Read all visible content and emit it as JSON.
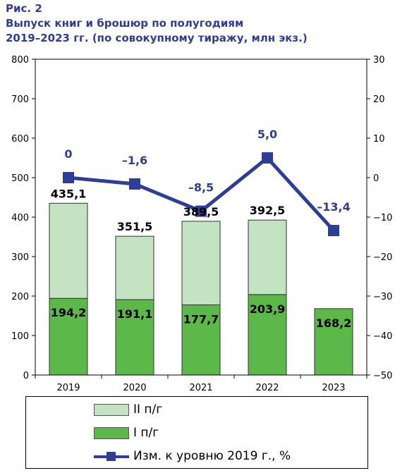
{
  "title": {
    "line1": "Рис. 2",
    "line2": "Выпуск книг и брошюр по полугодиям",
    "line3": "2019–2023 гг. (по совокупному тиражу, млн экз.)"
  },
  "colors": {
    "h2": "#c3e3c2",
    "h1": "#5cb848",
    "line": "#2e3e97",
    "label_blue": "#2e3e97"
  },
  "chart_data": {
    "type": "bar",
    "stacked": true,
    "categories": [
      "2019",
      "2020",
      "2021",
      "2022",
      "2023"
    ],
    "series": [
      {
        "name": "I п/г",
        "values": [
          194.2,
          191.1,
          177.7,
          203.9,
          168.2
        ],
        "labels": [
          "194,2",
          "191,1",
          "177,7",
          "203,9",
          "168,2"
        ]
      },
      {
        "name": "II п/г",
        "values": [
          240.9,
          160.4,
          211.8,
          188.6,
          null
        ]
      },
      {
        "name": "Изм. к уровню 2019 г., %",
        "type": "line",
        "axis": "right",
        "values": [
          0,
          -1.6,
          -8.5,
          5.0,
          -13.4
        ],
        "labels": [
          "0",
          "–1,6",
          "–8,5",
          "5,0",
          "–13,4"
        ]
      }
    ],
    "totals": [
      435.1,
      351.5,
      389.5,
      392.5,
      null
    ],
    "total_labels": [
      "435,1",
      "351,5",
      "389,5",
      "392,5",
      ""
    ],
    "left_axis": {
      "min": 0,
      "max": 800,
      "ticks": [
        "0",
        "100",
        "200",
        "300",
        "400",
        "500",
        "600",
        "700",
        "800"
      ]
    },
    "right_axis": {
      "min": -50,
      "max": 30,
      "ticks": [
        "−50",
        "−40",
        "−30",
        "−20",
        "−10",
        "0",
        "10",
        "20",
        "30"
      ]
    },
    "grid": false,
    "legend_position": "bottom"
  },
  "legend": {
    "h2_label": "II п/г",
    "h1_label": "I п/г",
    "line_label": "Изм. к уровню 2019 г., %"
  }
}
